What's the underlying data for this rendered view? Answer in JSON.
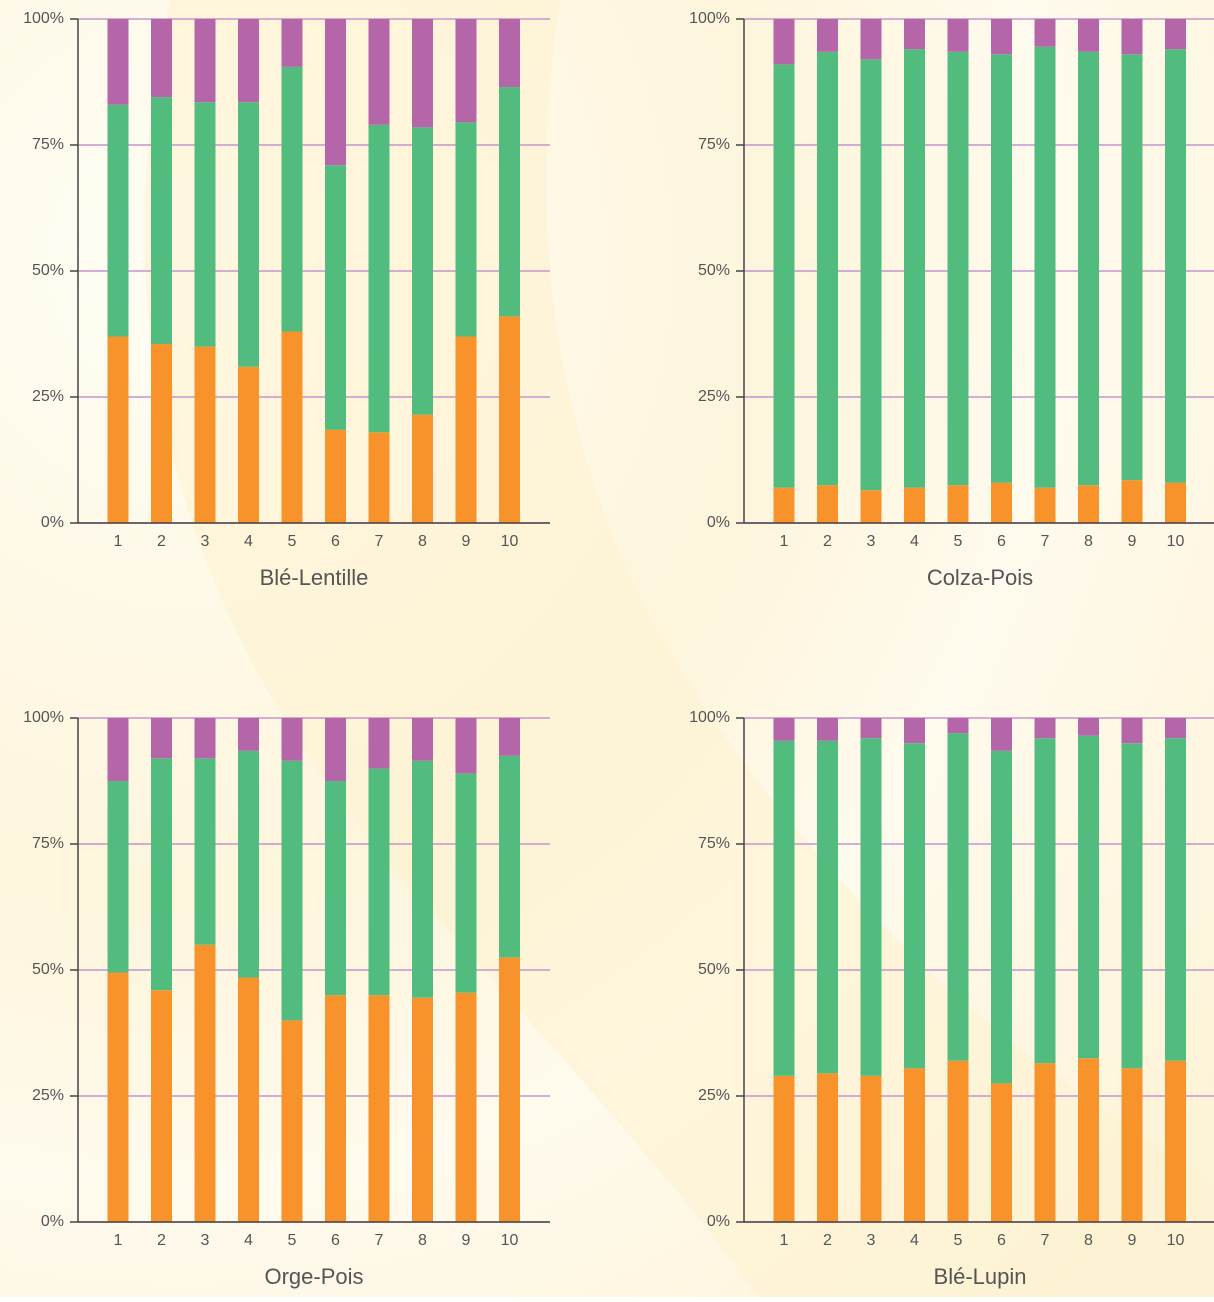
{
  "chart_data": [
    {
      "type": "bar",
      "stacked": true,
      "title": "Blé-Lentille",
      "categories": [
        "1",
        "2",
        "3",
        "4",
        "5",
        "6",
        "7",
        "8",
        "9",
        "10"
      ],
      "series": [
        {
          "color": "#f7932a",
          "values": [
            37,
            35.5,
            35,
            31,
            38,
            18.5,
            18,
            21.5,
            37,
            41
          ]
        },
        {
          "color": "#52bc7e",
          "values": [
            46,
            49,
            48.5,
            52.5,
            52.5,
            52.5,
            61,
            57,
            42.5,
            45.5
          ]
        },
        {
          "color": "#b466a8",
          "values": [
            17,
            15.5,
            16.5,
            16.5,
            9.5,
            29,
            21,
            21.5,
            20.5,
            13.5
          ]
        }
      ],
      "ylim": [
        0,
        100
      ],
      "yticks": [
        {
          "value": 0,
          "label": "0%"
        },
        {
          "value": 25,
          "label": "25%"
        },
        {
          "value": 50,
          "label": "50%"
        },
        {
          "value": 75,
          "label": "75%"
        },
        {
          "value": 100,
          "label": "100%"
        }
      ],
      "grid": true
    },
    {
      "type": "bar",
      "stacked": true,
      "title": "Colza-Pois",
      "categories": [
        "1",
        "2",
        "3",
        "4",
        "5",
        "6",
        "7",
        "8",
        "9",
        "10"
      ],
      "series": [
        {
          "color": "#f7932a",
          "values": [
            7,
            7.5,
            6.5,
            7,
            7.5,
            8,
            7,
            7.5,
            8.5,
            8
          ]
        },
        {
          "color": "#52bc7e",
          "values": [
            84,
            86,
            85.5,
            87,
            86,
            85,
            87.5,
            86,
            84.5,
            86
          ]
        },
        {
          "color": "#b466a8",
          "values": [
            9,
            6.5,
            8,
            6,
            6.5,
            7,
            5.5,
            6.5,
            7,
            6
          ]
        }
      ],
      "ylim": [
        0,
        100
      ],
      "yticks": [
        {
          "value": 0,
          "label": "0%"
        },
        {
          "value": 25,
          "label": "25%"
        },
        {
          "value": 50,
          "label": "50%"
        },
        {
          "value": 75,
          "label": "75%"
        },
        {
          "value": 100,
          "label": "100%"
        }
      ],
      "grid": true
    },
    {
      "type": "bar",
      "stacked": true,
      "title": "Orge-Pois",
      "categories": [
        "1",
        "2",
        "3",
        "4",
        "5",
        "6",
        "7",
        "8",
        "9",
        "10"
      ],
      "series": [
        {
          "color": "#f7932a",
          "values": [
            49.5,
            46,
            55,
            48.5,
            40,
            45,
            45,
            44.5,
            45.5,
            52.5
          ]
        },
        {
          "color": "#52bc7e",
          "values": [
            38,
            46,
            37,
            45,
            51.5,
            42.5,
            45,
            47,
            43.5,
            40
          ]
        },
        {
          "color": "#b466a8",
          "values": [
            12.5,
            8,
            8,
            6.5,
            8.5,
            12.5,
            10,
            8.5,
            11,
            7.5
          ]
        }
      ],
      "ylim": [
        0,
        100
      ],
      "yticks": [
        {
          "value": 0,
          "label": "0%"
        },
        {
          "value": 25,
          "label": "25%"
        },
        {
          "value": 50,
          "label": "50%"
        },
        {
          "value": 75,
          "label": "75%"
        },
        {
          "value": 100,
          "label": "100%"
        }
      ],
      "grid": true
    },
    {
      "type": "bar",
      "stacked": true,
      "title": "Blé-Lupin",
      "categories": [
        "1",
        "2",
        "3",
        "4",
        "5",
        "6",
        "7",
        "8",
        "9",
        "10"
      ],
      "series": [
        {
          "color": "#f7932a",
          "values": [
            29,
            29.5,
            29,
            30.5,
            32,
            27.5,
            31.5,
            32.5,
            30.5,
            32
          ]
        },
        {
          "color": "#52bc7e",
          "values": [
            66.5,
            66,
            67,
            64.5,
            65,
            66,
            64.5,
            64,
            64.5,
            64
          ]
        },
        {
          "color": "#b466a8",
          "values": [
            4.5,
            4.5,
            4,
            5,
            3,
            6.5,
            4,
            3.5,
            5,
            4
          ]
        }
      ],
      "ylim": [
        0,
        100
      ],
      "yticks": [
        {
          "value": 0,
          "label": "0%"
        },
        {
          "value": 25,
          "label": "25%"
        },
        {
          "value": 50,
          "label": "50%"
        },
        {
          "value": 75,
          "label": "75%"
        },
        {
          "value": 100,
          "label": "100%"
        }
      ],
      "grid": true
    }
  ]
}
